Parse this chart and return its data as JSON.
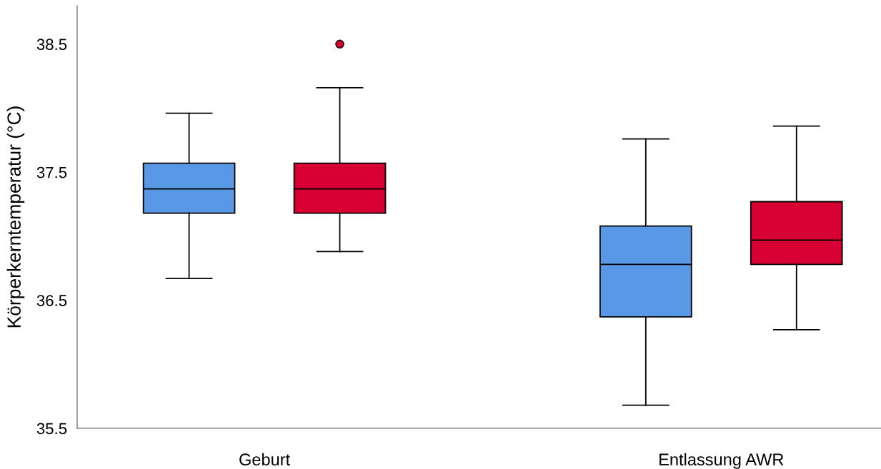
{
  "chart_data": {
    "type": "box",
    "ylabel": "Körperkerntemperatur (°C)",
    "categories": [
      "Geburt",
      "Entlassung AWR"
    ],
    "series": [
      {
        "color": "#5898e4",
        "boxes": [
          {
            "low": 36.67,
            "q1": 37.18,
            "median": 37.37,
            "q3": 37.57,
            "high": 37.96
          },
          {
            "low": 35.68,
            "q1": 36.37,
            "median": 36.78,
            "q3": 37.08,
            "high": 37.76
          }
        ]
      },
      {
        "color": "#d70033",
        "boxes": [
          {
            "low": 36.88,
            "q1": 37.18,
            "median": 37.37,
            "q3": 37.57,
            "high": 38.16,
            "outliers": [
              38.5
            ]
          },
          {
            "low": 36.27,
            "q1": 36.78,
            "median": 36.97,
            "q3": 37.27,
            "high": 37.86
          }
        ]
      }
    ],
    "ylim": [
      35.5,
      38.8
    ],
    "yticks": [
      35.5,
      36.5,
      37.5,
      38.5
    ],
    "grid": false,
    "legend": false
  }
}
